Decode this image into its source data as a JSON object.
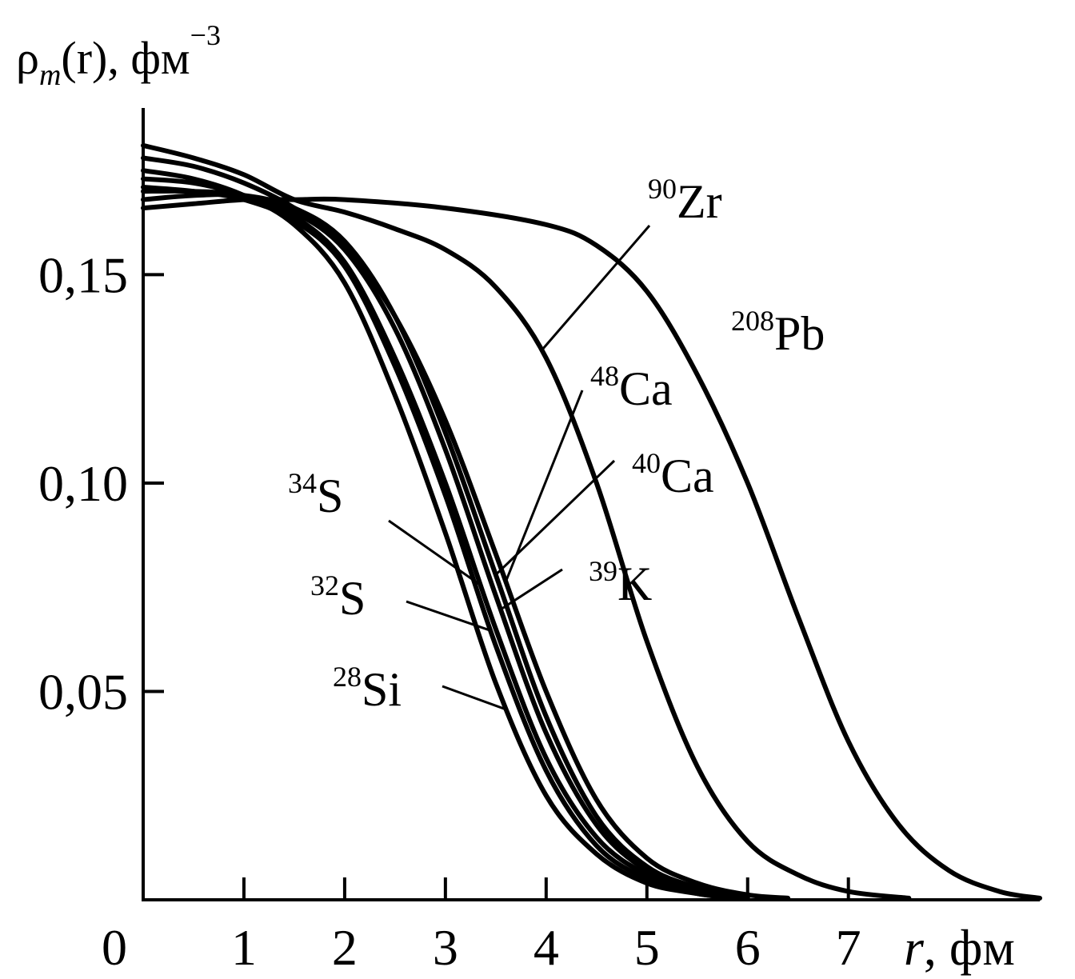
{
  "chart_data": {
    "type": "line",
    "ylabel": {
      "main": "ρ",
      "sub": "m",
      "rest": "(r),  фм",
      "sup": "−3"
    },
    "xlabel": {
      "var": "r",
      "rest": ", фм"
    },
    "xlim": [
      0,
      8.9
    ],
    "ylim": [
      0,
      0.19
    ],
    "x_ticks": [
      0,
      1,
      2,
      3,
      4,
      5,
      6,
      7
    ],
    "x_tick_labels": [
      "0",
      "1",
      "2",
      "3",
      "4",
      "5",
      "6",
      "7"
    ],
    "y_ticks": [
      0.05,
      0.1,
      0.15
    ],
    "y_tick_labels": [
      "0,05",
      "0,10",
      "0,15"
    ],
    "series": [
      {
        "name": "28Si",
        "mass": "28",
        "element": "Si",
        "points": [
          [
            0,
            0.175
          ],
          [
            0.5,
            0.173
          ],
          [
            1,
            0.169
          ],
          [
            1.5,
            0.162
          ],
          [
            2,
            0.148
          ],
          [
            2.5,
            0.121
          ],
          [
            3,
            0.088
          ],
          [
            3.5,
            0.052
          ],
          [
            4,
            0.025
          ],
          [
            4.5,
            0.011
          ],
          [
            5,
            0.004
          ],
          [
            5.5,
            0.0015
          ],
          [
            5.8,
            0.0005
          ]
        ]
      },
      {
        "name": "32S",
        "mass": "32",
        "element": "S",
        "points": [
          [
            0,
            0.171
          ],
          [
            0.5,
            0.17
          ],
          [
            1,
            0.168
          ],
          [
            1.5,
            0.163
          ],
          [
            2,
            0.152
          ],
          [
            2.5,
            0.128
          ],
          [
            3,
            0.097
          ],
          [
            3.5,
            0.061
          ],
          [
            4,
            0.031
          ],
          [
            4.5,
            0.013
          ],
          [
            5,
            0.005
          ],
          [
            5.5,
            0.0015
          ],
          [
            5.9,
            0.0005
          ]
        ]
      },
      {
        "name": "34S",
        "mass": "34",
        "element": "S",
        "points": [
          [
            0,
            0.173
          ],
          [
            0.5,
            0.172
          ],
          [
            1,
            0.169
          ],
          [
            1.5,
            0.164
          ],
          [
            2,
            0.153
          ],
          [
            2.5,
            0.13
          ],
          [
            3,
            0.1
          ],
          [
            3.5,
            0.065
          ],
          [
            4,
            0.034
          ],
          [
            4.5,
            0.015
          ],
          [
            5,
            0.006
          ],
          [
            5.5,
            0.002
          ],
          [
            6,
            0.0005
          ]
        ]
      },
      {
        "name": "39K",
        "mass": "39",
        "element": "K",
        "points": [
          [
            0,
            0.17
          ],
          [
            0.5,
            0.17
          ],
          [
            1,
            0.169
          ],
          [
            1.5,
            0.165
          ],
          [
            2,
            0.156
          ],
          [
            2.5,
            0.137
          ],
          [
            3,
            0.108
          ],
          [
            3.5,
            0.073
          ],
          [
            4,
            0.04
          ],
          [
            4.5,
            0.018
          ],
          [
            5,
            0.007
          ],
          [
            5.5,
            0.0025
          ],
          [
            6,
            0.0008
          ]
        ]
      },
      {
        "name": "40Ca",
        "mass": "40",
        "element": "Ca",
        "points": [
          [
            0,
            0.168
          ],
          [
            0.5,
            0.169
          ],
          [
            1,
            0.169
          ],
          [
            1.5,
            0.166
          ],
          [
            2,
            0.158
          ],
          [
            2.5,
            0.14
          ],
          [
            3,
            0.112
          ],
          [
            3.5,
            0.078
          ],
          [
            4,
            0.044
          ],
          [
            4.5,
            0.02
          ],
          [
            5,
            0.008
          ],
          [
            5.5,
            0.003
          ],
          [
            6,
            0.0008
          ]
        ]
      },
      {
        "name": "48Ca",
        "mass": "48",
        "element": "Ca",
        "points": [
          [
            0,
            0.178
          ],
          [
            0.5,
            0.176
          ],
          [
            1,
            0.172
          ],
          [
            1.5,
            0.166
          ],
          [
            2,
            0.157
          ],
          [
            2.5,
            0.14
          ],
          [
            3,
            0.115
          ],
          [
            3.5,
            0.083
          ],
          [
            4,
            0.05
          ],
          [
            4.5,
            0.024
          ],
          [
            5,
            0.01
          ],
          [
            5.5,
            0.004
          ],
          [
            6,
            0.0012
          ],
          [
            6.4,
            0.0004
          ]
        ]
      },
      {
        "name": "90Zr",
        "mass": "90",
        "element": "Zr",
        "points": [
          [
            0,
            0.181
          ],
          [
            0.5,
            0.178
          ],
          [
            1,
            0.174
          ],
          [
            1.5,
            0.168
          ],
          [
            2,
            0.165
          ],
          [
            2.5,
            0.161
          ],
          [
            3,
            0.156
          ],
          [
            3.5,
            0.147
          ],
          [
            4,
            0.13
          ],
          [
            4.5,
            0.1
          ],
          [
            5,
            0.062
          ],
          [
            5.5,
            0.032
          ],
          [
            6,
            0.014
          ],
          [
            6.5,
            0.006
          ],
          [
            7,
            0.002
          ],
          [
            7.6,
            0.0004
          ]
        ]
      },
      {
        "name": "208Pb",
        "mass": "208",
        "element": "Pb",
        "points": [
          [
            0,
            0.166
          ],
          [
            0.5,
            0.167
          ],
          [
            1,
            0.168
          ],
          [
            1.5,
            0.168
          ],
          [
            2,
            0.168
          ],
          [
            3,
            0.166
          ],
          [
            4,
            0.162
          ],
          [
            4.5,
            0.157
          ],
          [
            5,
            0.146
          ],
          [
            5.5,
            0.126
          ],
          [
            6,
            0.1
          ],
          [
            6.5,
            0.068
          ],
          [
            7,
            0.038
          ],
          [
            7.5,
            0.018
          ],
          [
            8,
            0.007
          ],
          [
            8.5,
            0.002
          ],
          [
            8.9,
            0.0004
          ]
        ]
      }
    ]
  }
}
